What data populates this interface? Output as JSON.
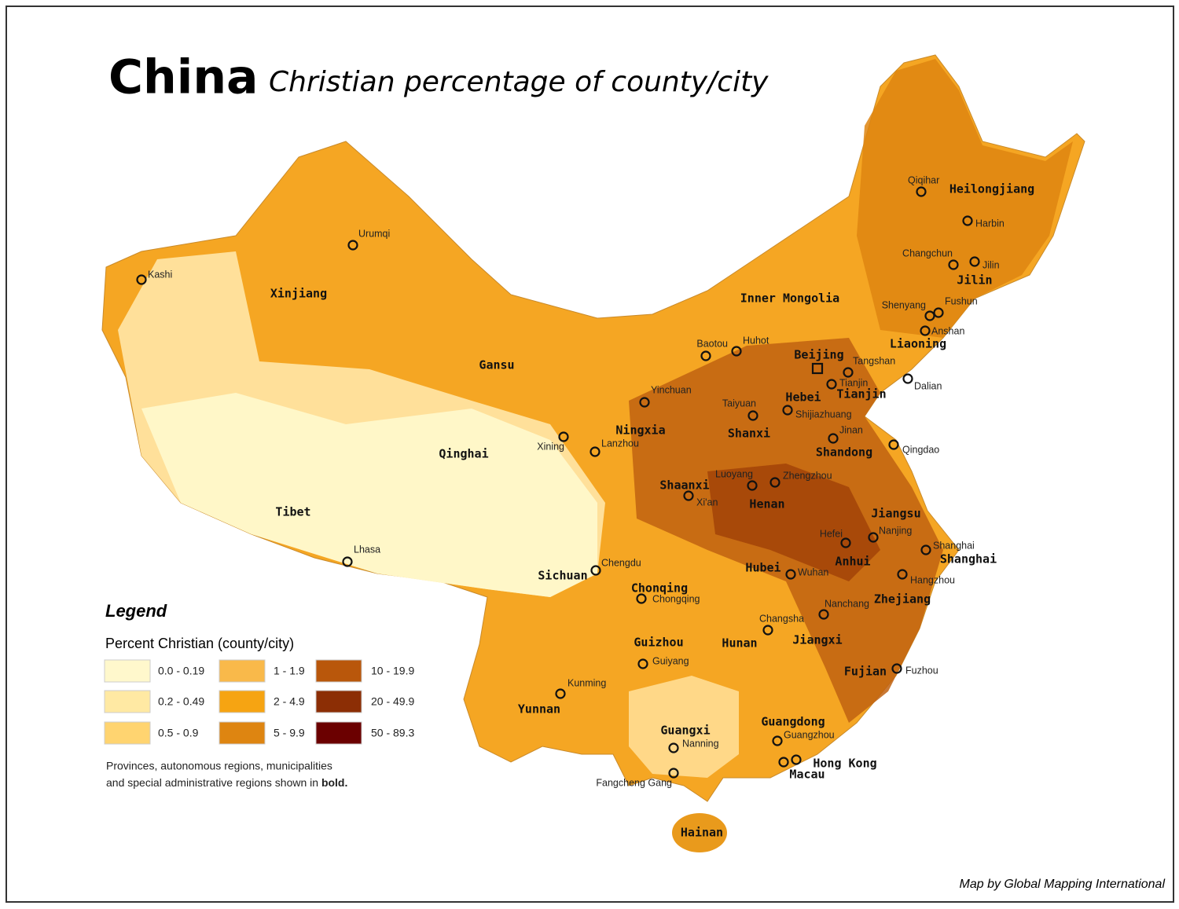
{
  "header": {
    "title": "China",
    "subtitle": "Christian percentage of county/city"
  },
  "legend": {
    "heading": "Legend",
    "title": "Percent Christian (county/city)",
    "items": [
      {
        "label": "0.0 - 0.19",
        "color": "#fff8cc"
      },
      {
        "label": "0.2 - 0.49",
        "color": "#ffe9a3"
      },
      {
        "label": "0.5 - 0.9",
        "color": "#ffd470"
      },
      {
        "label": "1 - 1.9",
        "color": "#f9b94a"
      },
      {
        "label": "2 - 4.9",
        "color": "#f6a412"
      },
      {
        "label": "5 - 9.9",
        "color": "#de8511"
      },
      {
        "label": "10 - 19.9",
        "color": "#b9570b"
      },
      {
        "label": "20 - 49.9",
        "color": "#8c2e05"
      },
      {
        "label": "50 - 89.3",
        "color": "#6b0000"
      }
    ]
  },
  "note": {
    "line1": "Provinces, autonomous regions, municipalities",
    "line2": "and special administrative regions shown in",
    "bold": "bold."
  },
  "credit": "Map by Global Mapping International",
  "provinces": [
    "Xinjiang",
    "Gansu",
    "Qinghai",
    "Tibet",
    "Inner Mongolia",
    "Heilongjiang",
    "Jilin",
    "Liaoning",
    "Beijing",
    "Tianjin",
    "Hebei",
    "Shanxi",
    "Shandong",
    "Ningxia",
    "Shaanxi",
    "Henan",
    "Jiangsu",
    "Anhui",
    "Shanghai",
    "Hubei",
    "Sichuan",
    "Chonqing",
    "Zhejiang",
    "Hunan",
    "Jiangxi",
    "Guizhou",
    "Fujian",
    "Yunnan",
    "Guangxi",
    "Guangdong",
    "Hong Kong",
    "Macau",
    "Hainan"
  ],
  "cities": [
    "Kashi",
    "Urumqi",
    "Lhasa",
    "Xining",
    "Lanzhou",
    "Chengdu",
    "Chongqing",
    "Kunming",
    "Guiyang",
    "Nanning",
    "Fangcheng Gang",
    "Yinchuan",
    "Baotou",
    "Huhot",
    "Taiyuan",
    "Shijiazhuang",
    "Jinan",
    "Qingdao",
    "Luoyang",
    "Zhengzhou",
    "Xi'an",
    "Tianjin",
    "Tangshan",
    "Dalian",
    "Shenyang",
    "Fushun",
    "Anshan",
    "Changchun",
    "Jilin",
    "Harbin",
    "Qiqihar",
    "Nanjing",
    "Hefei",
    "Shanghai",
    "Hangzhou",
    "Wuhan",
    "Nanchang",
    "Changsha",
    "Fuzhou",
    "Guangzhou"
  ]
}
